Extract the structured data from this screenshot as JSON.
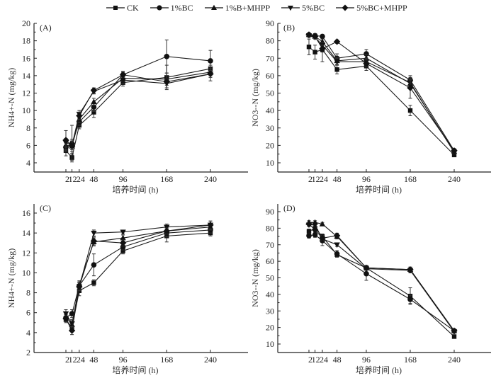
{
  "legend": [
    {
      "name": "CK",
      "marker": "square"
    },
    {
      "name": "1%BC",
      "marker": "circle"
    },
    {
      "name": "1%B+MHPP",
      "marker": "triangle-up"
    },
    {
      "name": "5%BC",
      "marker": "triangle-down"
    },
    {
      "name": "5%BC+MHPP",
      "marker": "diamond"
    }
  ],
  "chart_data": [
    {
      "type": "line",
      "panel_label": "(A)",
      "xlabel": "培养时间 (h)",
      "ylabel": "NH4+-N (mg/kg)",
      "x": [
        2,
        12,
        24,
        48,
        96,
        168,
        240
      ],
      "x_tick_labels": [
        "2",
        "12",
        "24",
        "48",
        "96",
        "168",
        "240"
      ],
      "ylim": [
        3,
        20
      ],
      "y_ticks": [
        4,
        6,
        8,
        10,
        12,
        14,
        16,
        18,
        20
      ],
      "series": [
        {
          "name": "CK",
          "values": [
            5.4,
            4.6,
            8.3,
            9.8,
            13.2,
            13.8,
            14.8
          ],
          "errors": [
            0.6,
            0.3,
            0.4,
            0.6,
            0.4,
            1.4,
            0.4
          ]
        },
        {
          "name": "1%BC",
          "values": [
            5.8,
            6.2,
            8.7,
            10.4,
            14.1,
            16.2,
            15.7
          ],
          "errors": [
            0.5,
            2.1,
            0.4,
            0.5,
            0.4,
            1.9,
            1.2
          ]
        },
        {
          "name": "1%B+MHPP",
          "values": [
            6.0,
            5.9,
            9.0,
            11.0,
            13.7,
            13.6,
            14.4
          ],
          "errors": [
            0.6,
            0.8,
            0.4,
            0.4,
            0.4,
            0.7,
            0.4
          ]
        },
        {
          "name": "5%BC",
          "values": [
            6.3,
            6.0,
            9.6,
            12.2,
            13.5,
            13.1,
            14.2
          ],
          "errors": [
            0.5,
            0.5,
            0.4,
            0.3,
            0.4,
            0.5,
            0.4
          ]
        },
        {
          "name": "5%BC+MHPP",
          "values": [
            6.6,
            5.9,
            9.4,
            12.3,
            14.1,
            13.3,
            14.2
          ],
          "errors": [
            1.1,
            0.6,
            0.4,
            0.3,
            0.3,
            0.7,
            0.8
          ]
        }
      ]
    },
    {
      "type": "line",
      "panel_label": "(B)",
      "xlabel": "培养时间 (h)",
      "ylabel": "NO3--N (mg/kg)",
      "x": [
        2,
        12,
        24,
        48,
        96,
        168,
        240
      ],
      "x_tick_labels": [
        "2",
        "12",
        "24",
        "48",
        "96",
        "168",
        "240"
      ],
      "ylim": [
        5,
        90
      ],
      "y_ticks": [
        10,
        20,
        30,
        40,
        50,
        60,
        70,
        80,
        90
      ],
      "series": [
        {
          "name": "CK",
          "values": [
            76.5,
            73.5,
            75.0,
            63.5,
            65.5,
            40.0,
            14.5
          ],
          "errors": [
            4.5,
            4.0,
            7.0,
            2.5,
            2.5,
            3.0,
            1.0
          ]
        },
        {
          "name": "1%BC",
          "values": [
            83.5,
            83.0,
            82.5,
            70.0,
            72.5,
            57.5,
            17.0
          ],
          "errors": [
            1.0,
            1.0,
            1.0,
            2.5,
            2.5,
            2.5,
            1.0
          ]
        },
        {
          "name": "1%B+MHPP",
          "values": [
            83.5,
            82.5,
            79.5,
            68.5,
            70.0,
            55.5,
            16.5
          ],
          "errors": [
            1.0,
            1.0,
            1.5,
            2.0,
            2.0,
            2.0,
            1.0
          ]
        },
        {
          "name": "5%BC",
          "values": [
            83.0,
            82.0,
            77.5,
            68.0,
            68.0,
            56.0,
            16.0
          ],
          "errors": [
            1.0,
            1.0,
            1.5,
            2.0,
            2.0,
            2.0,
            1.0
          ]
        },
        {
          "name": "5%BC+MHPP",
          "values": [
            83.5,
            82.5,
            75.5,
            79.5,
            67.0,
            53.0,
            17.0
          ],
          "errors": [
            1.0,
            1.0,
            2.0,
            1.0,
            2.0,
            6.0,
            1.0
          ]
        }
      ]
    },
    {
      "type": "line",
      "panel_label": "(C)",
      "xlabel": "培养时间 (h)",
      "ylabel": "NH4+-N (mg/kg)",
      "x": [
        2,
        12,
        24,
        48,
        96,
        168,
        240
      ],
      "x_tick_labels": [
        "2",
        "12",
        "24",
        "48",
        "96",
        "168",
        "240"
      ],
      "ylim": [
        2,
        17
      ],
      "y_ticks": [
        2,
        4,
        6,
        8,
        10,
        12,
        14,
        16
      ],
      "series": [
        {
          "name": "CK",
          "values": [
            5.3,
            4.5,
            8.2,
            9.0,
            12.2,
            13.7,
            14.0
          ],
          "errors": [
            0.3,
            0.4,
            0.5,
            0.3,
            0.3,
            0.6,
            0.3
          ]
        },
        {
          "name": "1%BC",
          "values": [
            5.5,
            5.9,
            8.7,
            10.8,
            12.6,
            14.0,
            14.3
          ],
          "errors": [
            0.3,
            0.4,
            0.4,
            1.1,
            0.3,
            0.4,
            0.3
          ]
        },
        {
          "name": "1%B+MHPP",
          "values": [
            5.6,
            4.8,
            8.8,
            13.1,
            13.5,
            14.2,
            14.6
          ],
          "errors": [
            0.3,
            0.4,
            0.4,
            0.4,
            0.3,
            0.3,
            0.3
          ]
        },
        {
          "name": "5%BC",
          "values": [
            5.9,
            4.9,
            8.6,
            14.0,
            14.1,
            14.6,
            14.8
          ],
          "errors": [
            0.4,
            0.4,
            0.4,
            0.3,
            0.2,
            0.3,
            0.4
          ]
        },
        {
          "name": "5%BC+MHPP",
          "values": [
            5.4,
            4.2,
            8.6,
            13.2,
            13.0,
            14.2,
            14.8
          ],
          "errors": [
            0.3,
            0.4,
            0.4,
            0.4,
            0.3,
            0.3,
            0.4
          ]
        }
      ]
    },
    {
      "type": "line",
      "panel_label": "(D)",
      "xlabel": "培养时间 (h)",
      "ylabel": "NO3--N (mg/kg)",
      "x": [
        2,
        12,
        24,
        48,
        96,
        168,
        240
      ],
      "x_tick_labels": [
        "2",
        "12",
        "24",
        "48",
        "96",
        "168",
        "240"
      ],
      "ylim": [
        5,
        95
      ],
      "y_ticks": [
        10,
        20,
        30,
        40,
        50,
        60,
        70,
        80,
        90
      ],
      "series": [
        {
          "name": "CK",
          "values": [
            78.0,
            80.0,
            75.0,
            64.0,
            56.0,
            39.0,
            14.5
          ],
          "errors": [
            1.5,
            1.5,
            1.5,
            1.5,
            1.5,
            5.0,
            1.0
          ]
        },
        {
          "name": "1%BC",
          "values": [
            75.5,
            76.0,
            72.5,
            64.5,
            52.5,
            37.0,
            18.0
          ],
          "errors": [
            1.5,
            1.5,
            3.0,
            2.0,
            4.0,
            2.5,
            1.0
          ]
        },
        {
          "name": "1%B+MHPP",
          "values": [
            83.5,
            83.5,
            82.5,
            75.0,
            56.0,
            55.0,
            18.0
          ],
          "errors": [
            1.0,
            1.0,
            1.0,
            1.5,
            1.0,
            1.5,
            1.0
          ]
        },
        {
          "name": "5%BC",
          "values": [
            82.0,
            82.0,
            73.5,
            70.0,
            55.5,
            54.5,
            17.5
          ],
          "errors": [
            1.0,
            1.0,
            1.0,
            1.0,
            1.0,
            1.5,
            1.0
          ]
        },
        {
          "name": "5%BC+MHPP",
          "values": [
            82.5,
            79.0,
            74.0,
            75.5,
            56.0,
            55.0,
            18.0
          ],
          "errors": [
            1.0,
            1.0,
            1.5,
            1.5,
            1.0,
            1.5,
            1.0
          ]
        }
      ]
    }
  ]
}
